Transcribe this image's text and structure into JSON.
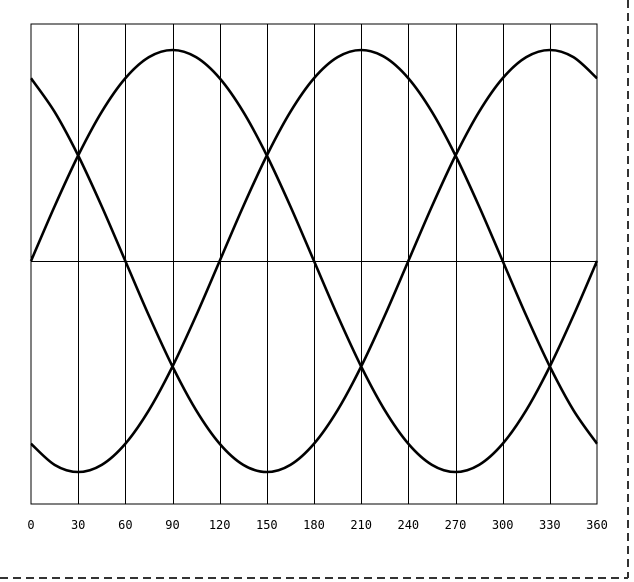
{
  "chart_data": {
    "type": "line",
    "title": "",
    "xlabel": "",
    "ylabel": "",
    "xlim": [
      0,
      360
    ],
    "ylim": [
      -1,
      1
    ],
    "grid": {
      "vertical": true,
      "vertical_step": 30,
      "horizontal_zero_line": true
    },
    "x_ticks": [
      "0",
      "30",
      "60",
      "90",
      "120",
      "150",
      "180",
      "210",
      "240",
      "270",
      "300",
      "330",
      "360"
    ],
    "x": [
      0,
      15,
      30,
      45,
      60,
      75,
      90,
      105,
      120,
      135,
      150,
      165,
      180,
      195,
      210,
      225,
      240,
      255,
      270,
      285,
      300,
      315,
      330,
      345,
      360
    ],
    "series": [
      {
        "values": [
          0,
          0.259,
          0.5,
          0.707,
          0.866,
          0.966,
          1,
          0.966,
          0.866,
          0.707,
          0.5,
          0.259,
          0,
          -0.259,
          -0.5,
          -0.707,
          -0.866,
          -0.966,
          -1,
          -0.966,
          -0.866,
          -0.707,
          -0.5,
          -0.259,
          0
        ]
      },
      {
        "values": [
          0.866,
          0.707,
          0.5,
          0.259,
          0,
          -0.259,
          -0.5,
          -0.707,
          -0.866,
          -0.966,
          -1,
          -0.966,
          -0.866,
          -0.707,
          -0.5,
          -0.259,
          0,
          0.259,
          0.5,
          0.707,
          0.866,
          0.966,
          1,
          0.966,
          0.866
        ]
      },
      {
        "values": [
          -0.866,
          -0.966,
          -1,
          -0.966,
          -0.866,
          -0.707,
          -0.5,
          -0.259,
          0,
          0.259,
          0.5,
          0.707,
          0.866,
          0.966,
          1,
          0.966,
          0.866,
          0.707,
          0.5,
          0.259,
          0,
          -0.259,
          -0.5,
          -0.707,
          -0.866
        ]
      }
    ],
    "colors": {
      "line": "#000000",
      "grid": "#000000",
      "border_dashed": "#333333"
    }
  }
}
